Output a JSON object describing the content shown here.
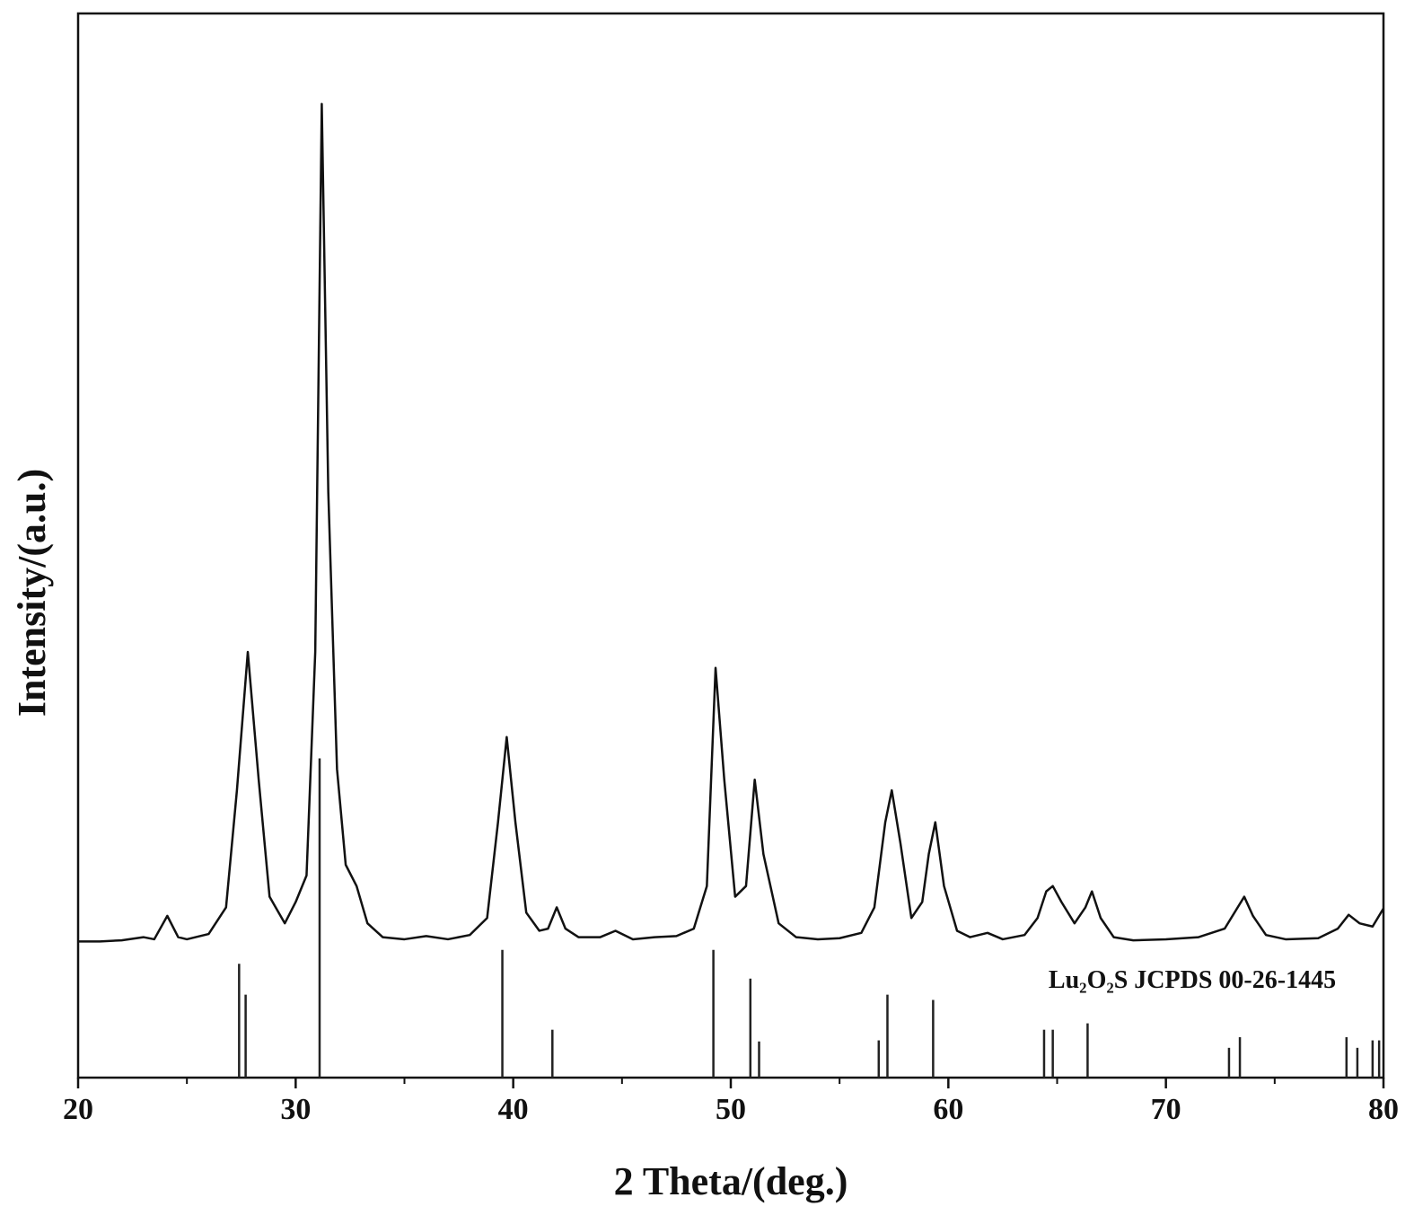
{
  "chart_data": {
    "type": "line",
    "xlabel": "2 Theta/(deg.)",
    "ylabel": "Intensity/(a.u.)",
    "color": "#111111",
    "x": [
      20,
      21,
      22,
      23,
      23.5,
      24.1,
      24.6,
      25,
      26,
      26.8,
      27.3,
      27.8,
      28.3,
      28.8,
      29.5,
      30,
      30.5,
      30.9,
      31.2,
      31.5,
      31.9,
      32.3,
      32.8,
      33.3,
      34,
      35,
      36,
      37,
      38,
      38.8,
      39.3,
      39.7,
      40.1,
      40.6,
      41.2,
      41.6,
      42,
      42.4,
      43,
      44,
      44.7,
      45.5,
      46.5,
      47.5,
      48.3,
      48.9,
      49.3,
      49.7,
      50.2,
      50.7,
      51.1,
      51.5,
      52.2,
      53,
      54,
      55,
      56,
      56.6,
      57.1,
      57.4,
      57.8,
      58.3,
      58.8,
      59.1,
      59.4,
      59.8,
      60.4,
      61,
      61.8,
      62.5,
      63.5,
      64.1,
      64.5,
      64.8,
      65.2,
      65.8,
      66.3,
      66.6,
      67,
      67.6,
      68.5,
      70,
      71.5,
      72.7,
      73.3,
      73.6,
      74,
      74.6,
      75.5,
      77,
      77.9,
      78.4,
      78.9,
      79.5,
      80
    ],
    "values": [
      12.8,
      12.8,
      12.9,
      13.2,
      13.0,
      15.2,
      13.2,
      13.0,
      13.5,
      16,
      27,
      40,
      28,
      17,
      14.5,
      16.5,
      19,
      40,
      91.5,
      55,
      29,
      20,
      18,
      14.5,
      13.2,
      13.0,
      13.3,
      13.0,
      13.4,
      15,
      24,
      32,
      24,
      15.5,
      13.8,
      14,
      16,
      14,
      13.2,
      13.2,
      13.8,
      13.0,
      13.2,
      13.3,
      14,
      18,
      38.5,
      28,
      17,
      18,
      28,
      21,
      14.5,
      13.2,
      13.0,
      13.1,
      13.6,
      16,
      24,
      27,
      22,
      15,
      16.5,
      21,
      24,
      18,
      13.8,
      13.2,
      13.6,
      13.0,
      13.4,
      15,
      17.5,
      18,
      16.5,
      14.5,
      16,
      17.5,
      15,
      13.2,
      12.9,
      13.0,
      13.2,
      14,
      16,
      17,
      15.2,
      13.4,
      13.0,
      13.1,
      14,
      15.3,
      14.5,
      14.2,
      15.9
    ],
    "reference": {
      "type": "stem",
      "name": "Lu₂O₂S JCPDS 00-26-1445",
      "color": "#222222",
      "x": [
        27.4,
        27.7,
        31.1,
        39.5,
        41.8,
        49.2,
        50.9,
        51.3,
        56.8,
        57.2,
        59.3,
        64.4,
        64.8,
        66.4,
        72.9,
        73.4,
        78.3,
        78.8,
        79.5,
        79.8
      ],
      "values": [
        10.7,
        7.8,
        30,
        12,
        4.5,
        12,
        9.3,
        3.4,
        3.5,
        7.8,
        7.3,
        4.5,
        4.5,
        5.1,
        2.8,
        3.8,
        3.8,
        2.8,
        3.5,
        3.5
      ]
    },
    "xlim": [
      20,
      80
    ],
    "xticks": [
      20,
      30,
      40,
      50,
      60,
      70,
      80
    ],
    "xminorticks": [
      25,
      35,
      45,
      55,
      65,
      75
    ],
    "ylim": [
      0,
      100
    ]
  }
}
